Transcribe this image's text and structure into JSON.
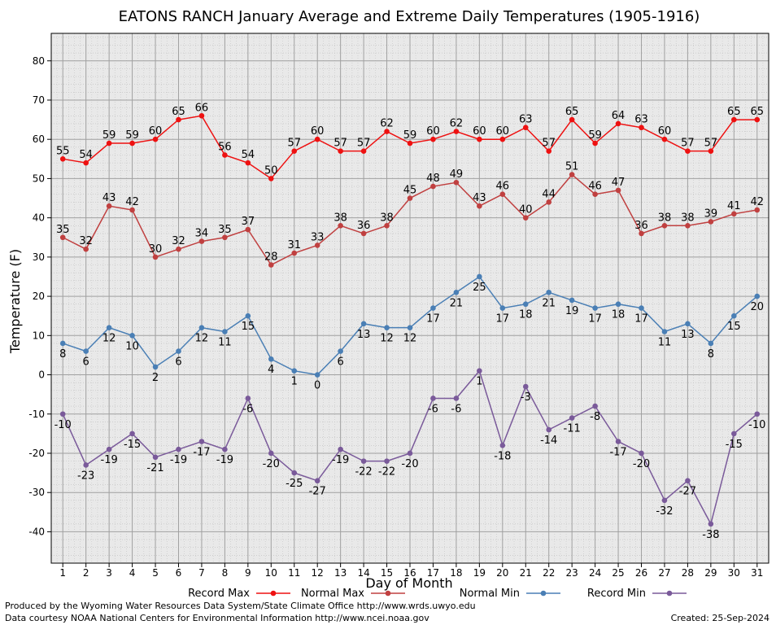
{
  "chart_data": {
    "type": "line",
    "title": "EATONS RANCH January Average and Extreme Daily Temperatures (1905-1916)",
    "xlabel": "Day of Month",
    "ylabel": "Temperature (F)",
    "x": [
      1,
      2,
      3,
      4,
      5,
      6,
      7,
      8,
      9,
      10,
      11,
      12,
      13,
      14,
      15,
      16,
      17,
      18,
      19,
      20,
      21,
      22,
      23,
      24,
      25,
      26,
      27,
      28,
      29,
      30,
      31
    ],
    "xlim": [
      0.5,
      31.5
    ],
    "ylim": [
      -48,
      87
    ],
    "yticks": [
      -40,
      -30,
      -20,
      -10,
      0,
      10,
      20,
      30,
      40,
      50,
      60,
      70,
      80
    ],
    "grid": true,
    "legend_position": "bottom",
    "series": [
      {
        "name": "Record Max",
        "color": "#ee1111",
        "values": [
          55,
          54,
          59,
          59,
          60,
          65,
          66,
          56,
          54,
          50,
          57,
          60,
          57,
          57,
          62,
          59,
          60,
          62,
          60,
          60,
          63,
          57,
          65,
          59,
          64,
          63,
          60,
          57,
          57,
          65,
          65
        ],
        "label_pos": "above"
      },
      {
        "name": "Normal Max",
        "color": "#c04040",
        "values": [
          35,
          32,
          43,
          42,
          30,
          32,
          34,
          35,
          37,
          28,
          31,
          33,
          38,
          36,
          38,
          45,
          48,
          49,
          43,
          46,
          40,
          44,
          51,
          46,
          47,
          36,
          38,
          38,
          39,
          41,
          42
        ],
        "label_pos": "above"
      },
      {
        "name": "Normal Min",
        "color": "#4a7fb5",
        "values": [
          8,
          6,
          12,
          10,
          2,
          6,
          12,
          11,
          15,
          4,
          1,
          0,
          6,
          13,
          12,
          12,
          17,
          21,
          25,
          17,
          18,
          21,
          19,
          17,
          18,
          17,
          11,
          13,
          8,
          15,
          20
        ],
        "label_pos": "below"
      },
      {
        "name": "Record Min",
        "color": "#7a5a9a",
        "values": [
          -10,
          -23,
          -19,
          -15,
          -21,
          -19,
          -17,
          -19,
          -6,
          -20,
          -25,
          -27,
          -19,
          -22,
          -22,
          -20,
          -6,
          -6,
          1,
          -18,
          -3,
          -14,
          -11,
          -8,
          -17,
          -20,
          -32,
          -27,
          -38,
          -15,
          -10
        ],
        "label_pos": "below"
      }
    ]
  },
  "footer": {
    "produced_by": "Produced by the Wyoming Water Resources Data System/State Climate Office http://www.wrds.uwyo.edu",
    "courtesy": "Data courtesy NOAA National Centers for Environmental Information http://www.ncei.noaa.gov",
    "created": "Created:  25-Sep-2024"
  }
}
